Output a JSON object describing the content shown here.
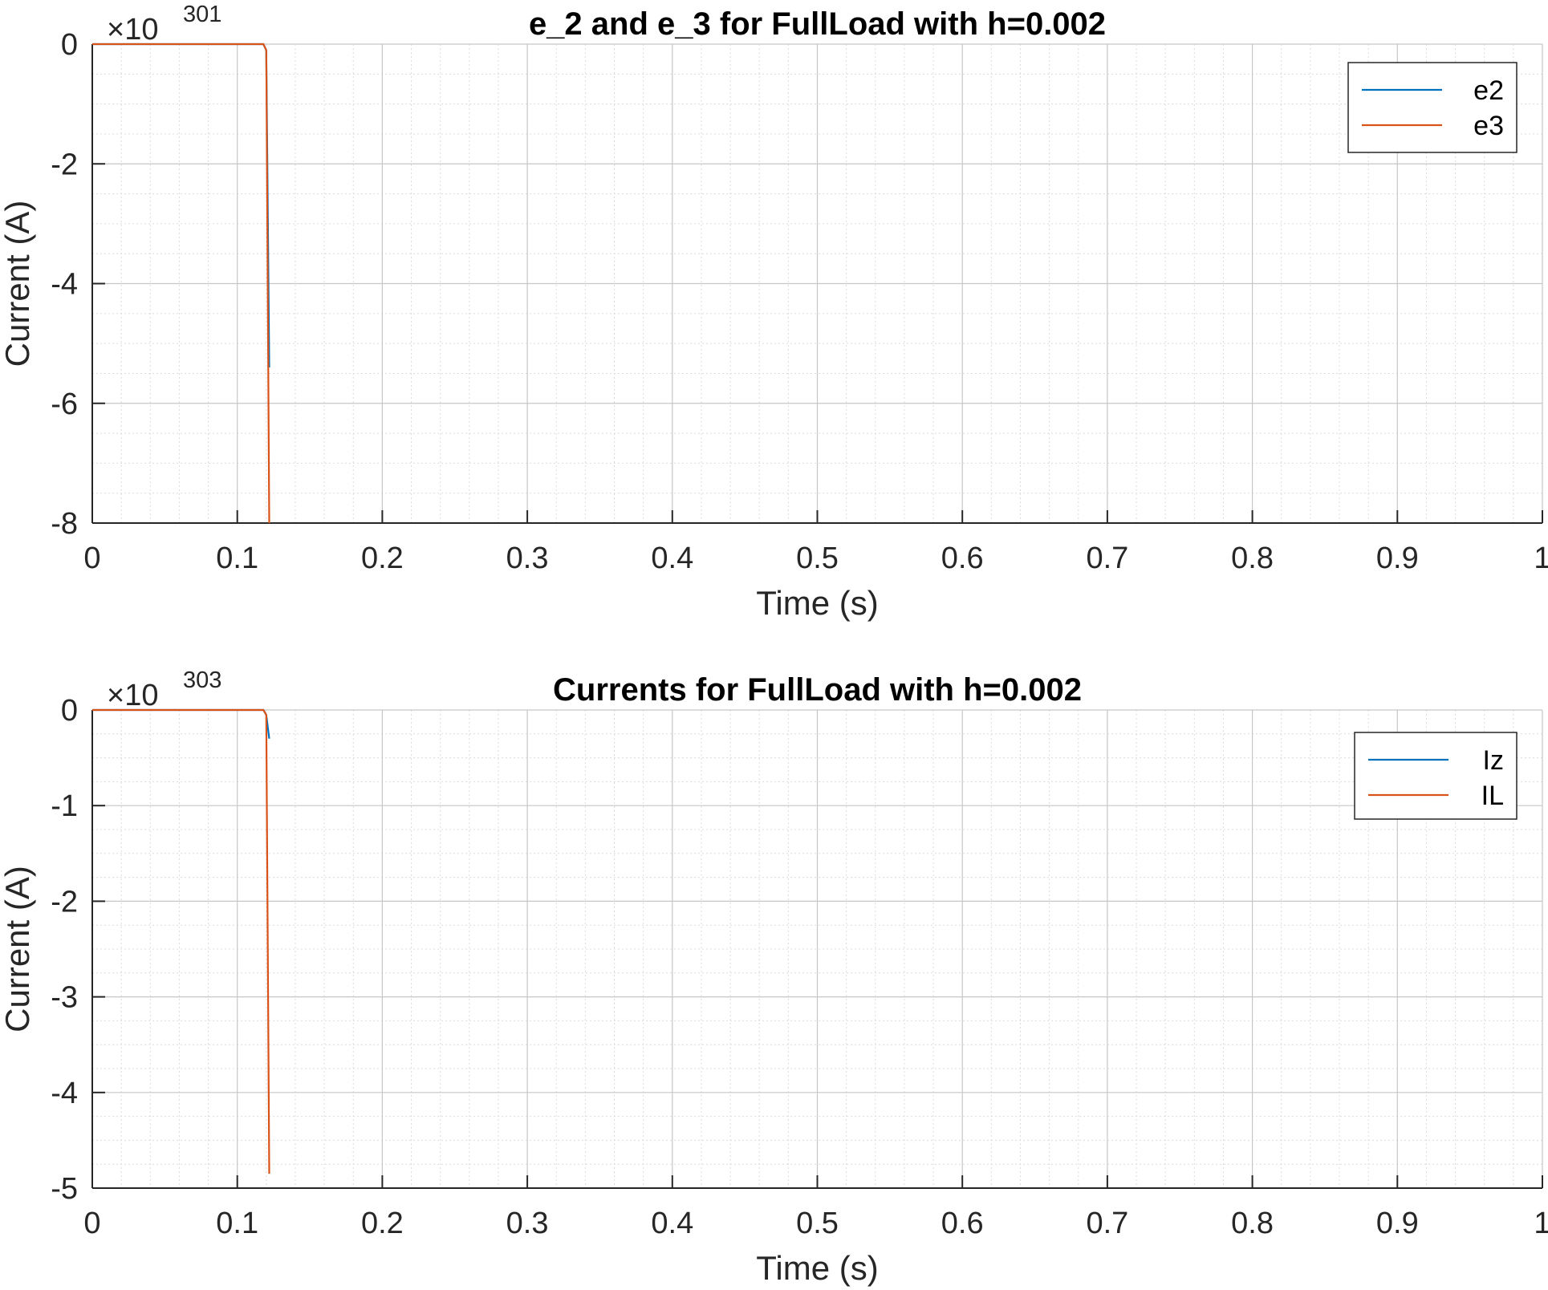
{
  "colors": {
    "series_1": "#0072BD",
    "series_2": "#D95319",
    "grid_major": "#c6c6c6",
    "grid_minor": "#dcdcdc",
    "axis": "#262626"
  },
  "chart_data": [
    {
      "type": "line",
      "title": "e_2 and e_3 for FullLoad with h=0.002",
      "xlabel": "Time (s)",
      "ylabel": "Current (A)",
      "y_exponent_base": "×10",
      "y_exponent_power": "301",
      "xlim": [
        0,
        1
      ],
      "ylim": [
        -8,
        0
      ],
      "x_ticks": [
        0,
        0.1,
        0.2,
        0.3,
        0.4,
        0.5,
        0.6,
        0.7,
        0.8,
        0.9,
        1
      ],
      "x_tick_labels": [
        "0",
        "0.1",
        "0.2",
        "0.3",
        "0.4",
        "0.5",
        "0.6",
        "0.7",
        "0.8",
        "0.9",
        "1"
      ],
      "y_ticks": [
        0,
        -2,
        -4,
        -6,
        -8
      ],
      "y_tick_labels": [
        "0",
        "-2",
        "-4",
        "-6",
        "-8"
      ],
      "grid": "on (major and minor)",
      "legend_position": "top-right",
      "series": [
        {
          "name": "e2",
          "x": [
            0,
            0.118,
            0.12,
            0.122
          ],
          "y": [
            0,
            0,
            -0.1,
            -5.4
          ]
        },
        {
          "name": "e3",
          "x": [
            0,
            0.118,
            0.12,
            0.122
          ],
          "y": [
            0,
            0,
            -0.1,
            -8.1
          ]
        }
      ]
    },
    {
      "type": "line",
      "title": "Currents for FullLoad with h=0.002",
      "xlabel": "Time (s)",
      "ylabel": "Current (A)",
      "y_exponent_base": "×10",
      "y_exponent_power": "303",
      "xlim": [
        0,
        1
      ],
      "ylim": [
        -5,
        0
      ],
      "x_ticks": [
        0,
        0.1,
        0.2,
        0.3,
        0.4,
        0.5,
        0.6,
        0.7,
        0.8,
        0.9,
        1
      ],
      "x_tick_labels": [
        "0",
        "0.1",
        "0.2",
        "0.3",
        "0.4",
        "0.5",
        "0.6",
        "0.7",
        "0.8",
        "0.9",
        "1"
      ],
      "y_ticks": [
        0,
        -1,
        -2,
        -3,
        -4,
        -5
      ],
      "y_tick_labels": [
        "0",
        "-1",
        "-2",
        "-3",
        "-4",
        "-5"
      ],
      "grid": "on (major and minor)",
      "legend_position": "top-right",
      "series": [
        {
          "name": "Iz",
          "x": [
            0,
            0.118,
            0.12,
            0.122
          ],
          "y": [
            0,
            0,
            -0.05,
            -0.3
          ]
        },
        {
          "name": "IL",
          "x": [
            0,
            0.118,
            0.12,
            0.122
          ],
          "y": [
            0,
            0,
            -0.05,
            -4.85
          ]
        }
      ]
    }
  ]
}
